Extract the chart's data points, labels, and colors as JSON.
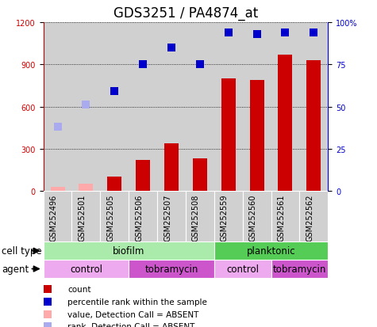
{
  "title": "GDS3251 / PA4874_at",
  "samples": [
    "GSM252496",
    "GSM252501",
    "GSM252505",
    "GSM252506",
    "GSM252507",
    "GSM252508",
    "GSM252559",
    "GSM252560",
    "GSM252561",
    "GSM252562"
  ],
  "counts": [
    30,
    50,
    100,
    220,
    340,
    230,
    800,
    790,
    970,
    930
  ],
  "percentile_ranks_pct": [
    38,
    51,
    59,
    75,
    85,
    75,
    94,
    93,
    94,
    94
  ],
  "absent_mask": [
    true,
    true,
    false,
    false,
    false,
    false,
    false,
    false,
    false,
    false
  ],
  "count_colors_normal": "#cc0000",
  "count_colors_absent": "#ffaaaa",
  "rank_colors_normal": "#0000cc",
  "rank_colors_absent": "#aaaaee",
  "ylim_left": [
    0,
    1200
  ],
  "ylim_right": [
    0,
    100
  ],
  "yticks_left": [
    0,
    300,
    600,
    900,
    1200
  ],
  "yticks_right": [
    0,
    25,
    50,
    75,
    100
  ],
  "cell_type_labels": [
    {
      "label": "biofilm",
      "start": 0,
      "end": 6,
      "color": "#aaeaaa"
    },
    {
      "label": "planktonic",
      "start": 6,
      "end": 10,
      "color": "#55cc55"
    }
  ],
  "agent_labels": [
    {
      "label": "control",
      "start": 0,
      "end": 3,
      "color": "#eeaaee"
    },
    {
      "label": "tobramycin",
      "start": 3,
      "end": 6,
      "color": "#cc55cc"
    },
    {
      "label": "control",
      "start": 6,
      "end": 8,
      "color": "#eeaaee"
    },
    {
      "label": "tobramycin",
      "start": 8,
      "end": 10,
      "color": "#cc55cc"
    }
  ],
  "legend_items": [
    {
      "label": "count",
      "color": "#cc0000",
      "marker": "s"
    },
    {
      "label": "percentile rank within the sample",
      "color": "#0000cc",
      "marker": "s"
    },
    {
      "label": "value, Detection Call = ABSENT",
      "color": "#ffaaaa",
      "marker": "s"
    },
    {
      "label": "rank, Detection Call = ABSENT",
      "color": "#aaaaee",
      "marker": "s"
    }
  ],
  "cell_type_row_label": "cell type",
  "agent_row_label": "agent",
  "bar_width": 0.5,
  "plot_bg_color": "#d8d8d8",
  "title_fontsize": 12,
  "tick_fontsize": 7,
  "label_fontsize": 8.5
}
